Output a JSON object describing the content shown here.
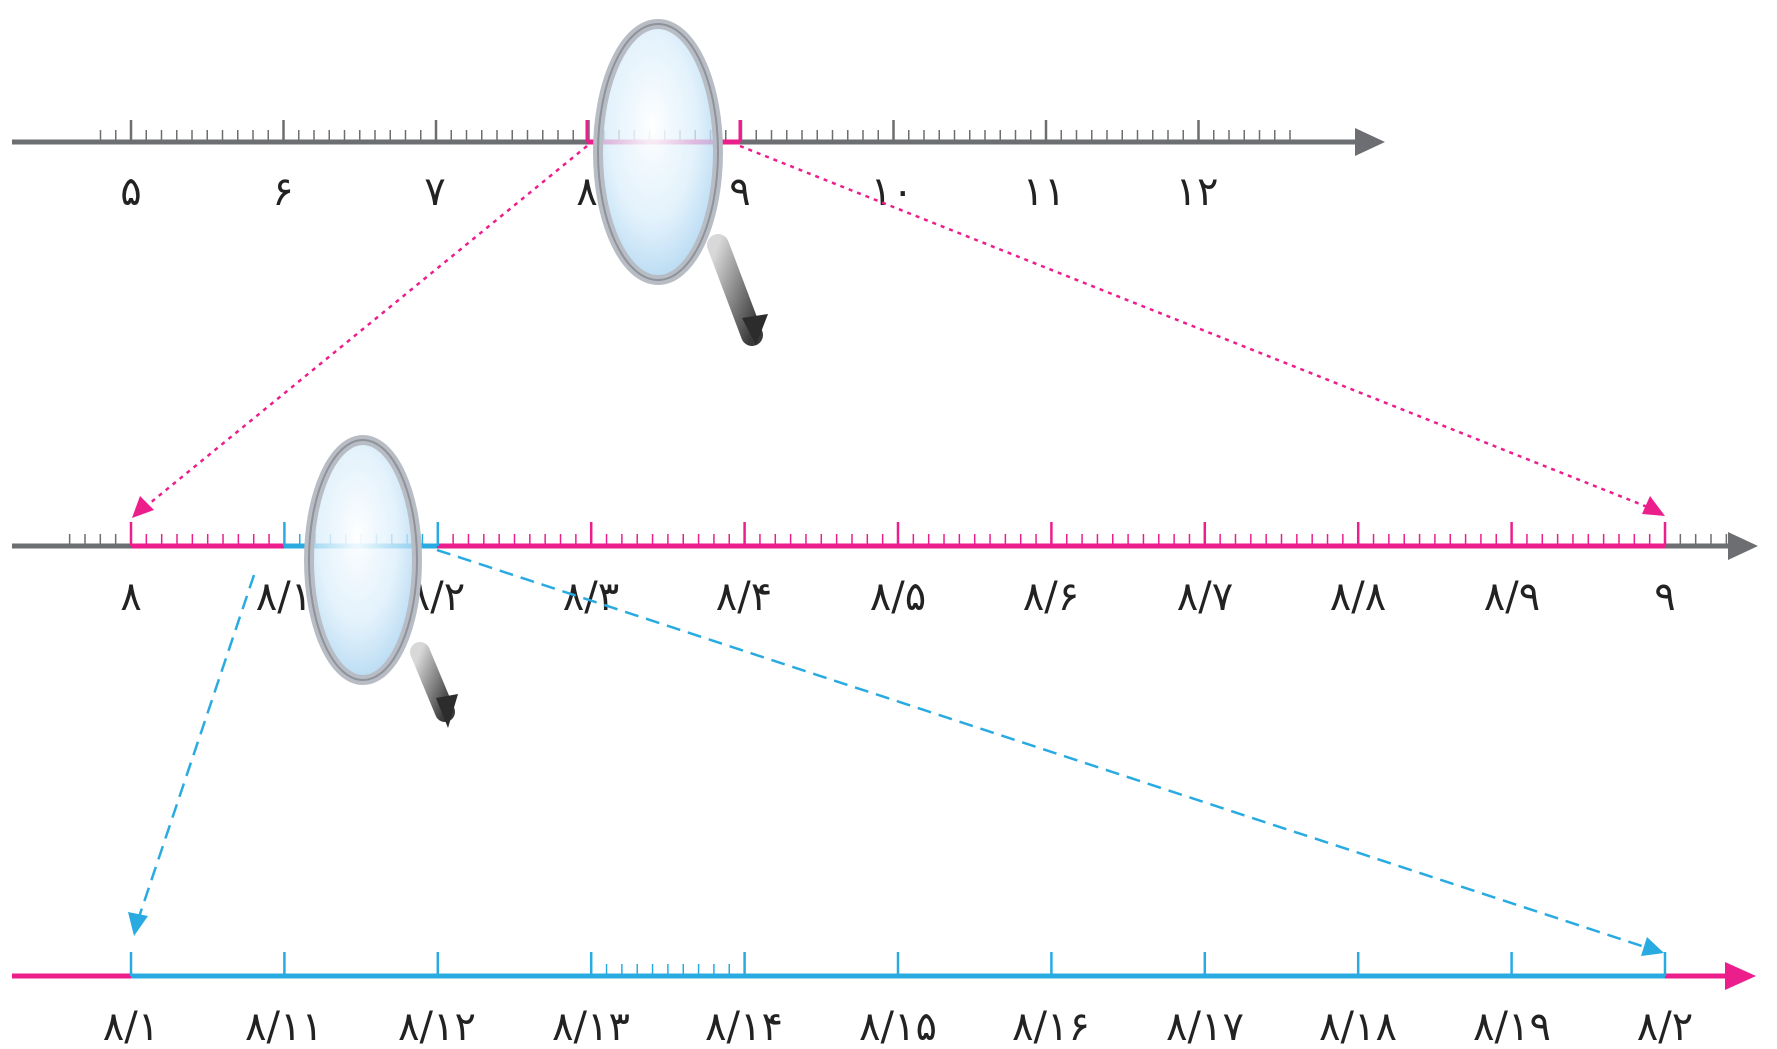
{
  "lines": [
    {
      "id": "line-integers",
      "labels": [
        "۵",
        "۶",
        "۷",
        "۸",
        "۹",
        "۱۰",
        "۱۱",
        "۱۲"
      ],
      "minor_divisions": 10,
      "highlight_segment": {
        "from": "۸",
        "to": "۹"
      }
    },
    {
      "id": "line-tenths",
      "labels": [
        "۸",
        "۸/۱",
        "۸/۲",
        "۸/۳",
        "۸/۴",
        "۸/۵",
        "۸/۶",
        "۸/۷",
        "۸/۸",
        "۸/۹",
        "۹"
      ],
      "minor_divisions": 10,
      "highlight_segment": {
        "from": "۸/۱",
        "to": "۸/۲"
      }
    },
    {
      "id": "line-hundredths",
      "labels": [
        "۸/۱",
        "۸/۱۱",
        "۸/۱۲",
        "۸/۱۳",
        "۸/۱۴",
        "۸/۱۵",
        "۸/۱۶",
        "۸/۱۷",
        "۸/۱۸",
        "۸/۱۹",
        "۸/۲"
      ],
      "minor_divisions_between": {
        "from": "۸/۱۳",
        "to": "۸/۱۴",
        "count": 10
      }
    }
  ],
  "colors": {
    "axis_gray": "#6d6e71",
    "magenta": "#ec1e8c",
    "cyan": "#29abe2",
    "label": "#222222"
  },
  "icons": [
    "magnifier-icon",
    "magnifier-icon"
  ]
}
